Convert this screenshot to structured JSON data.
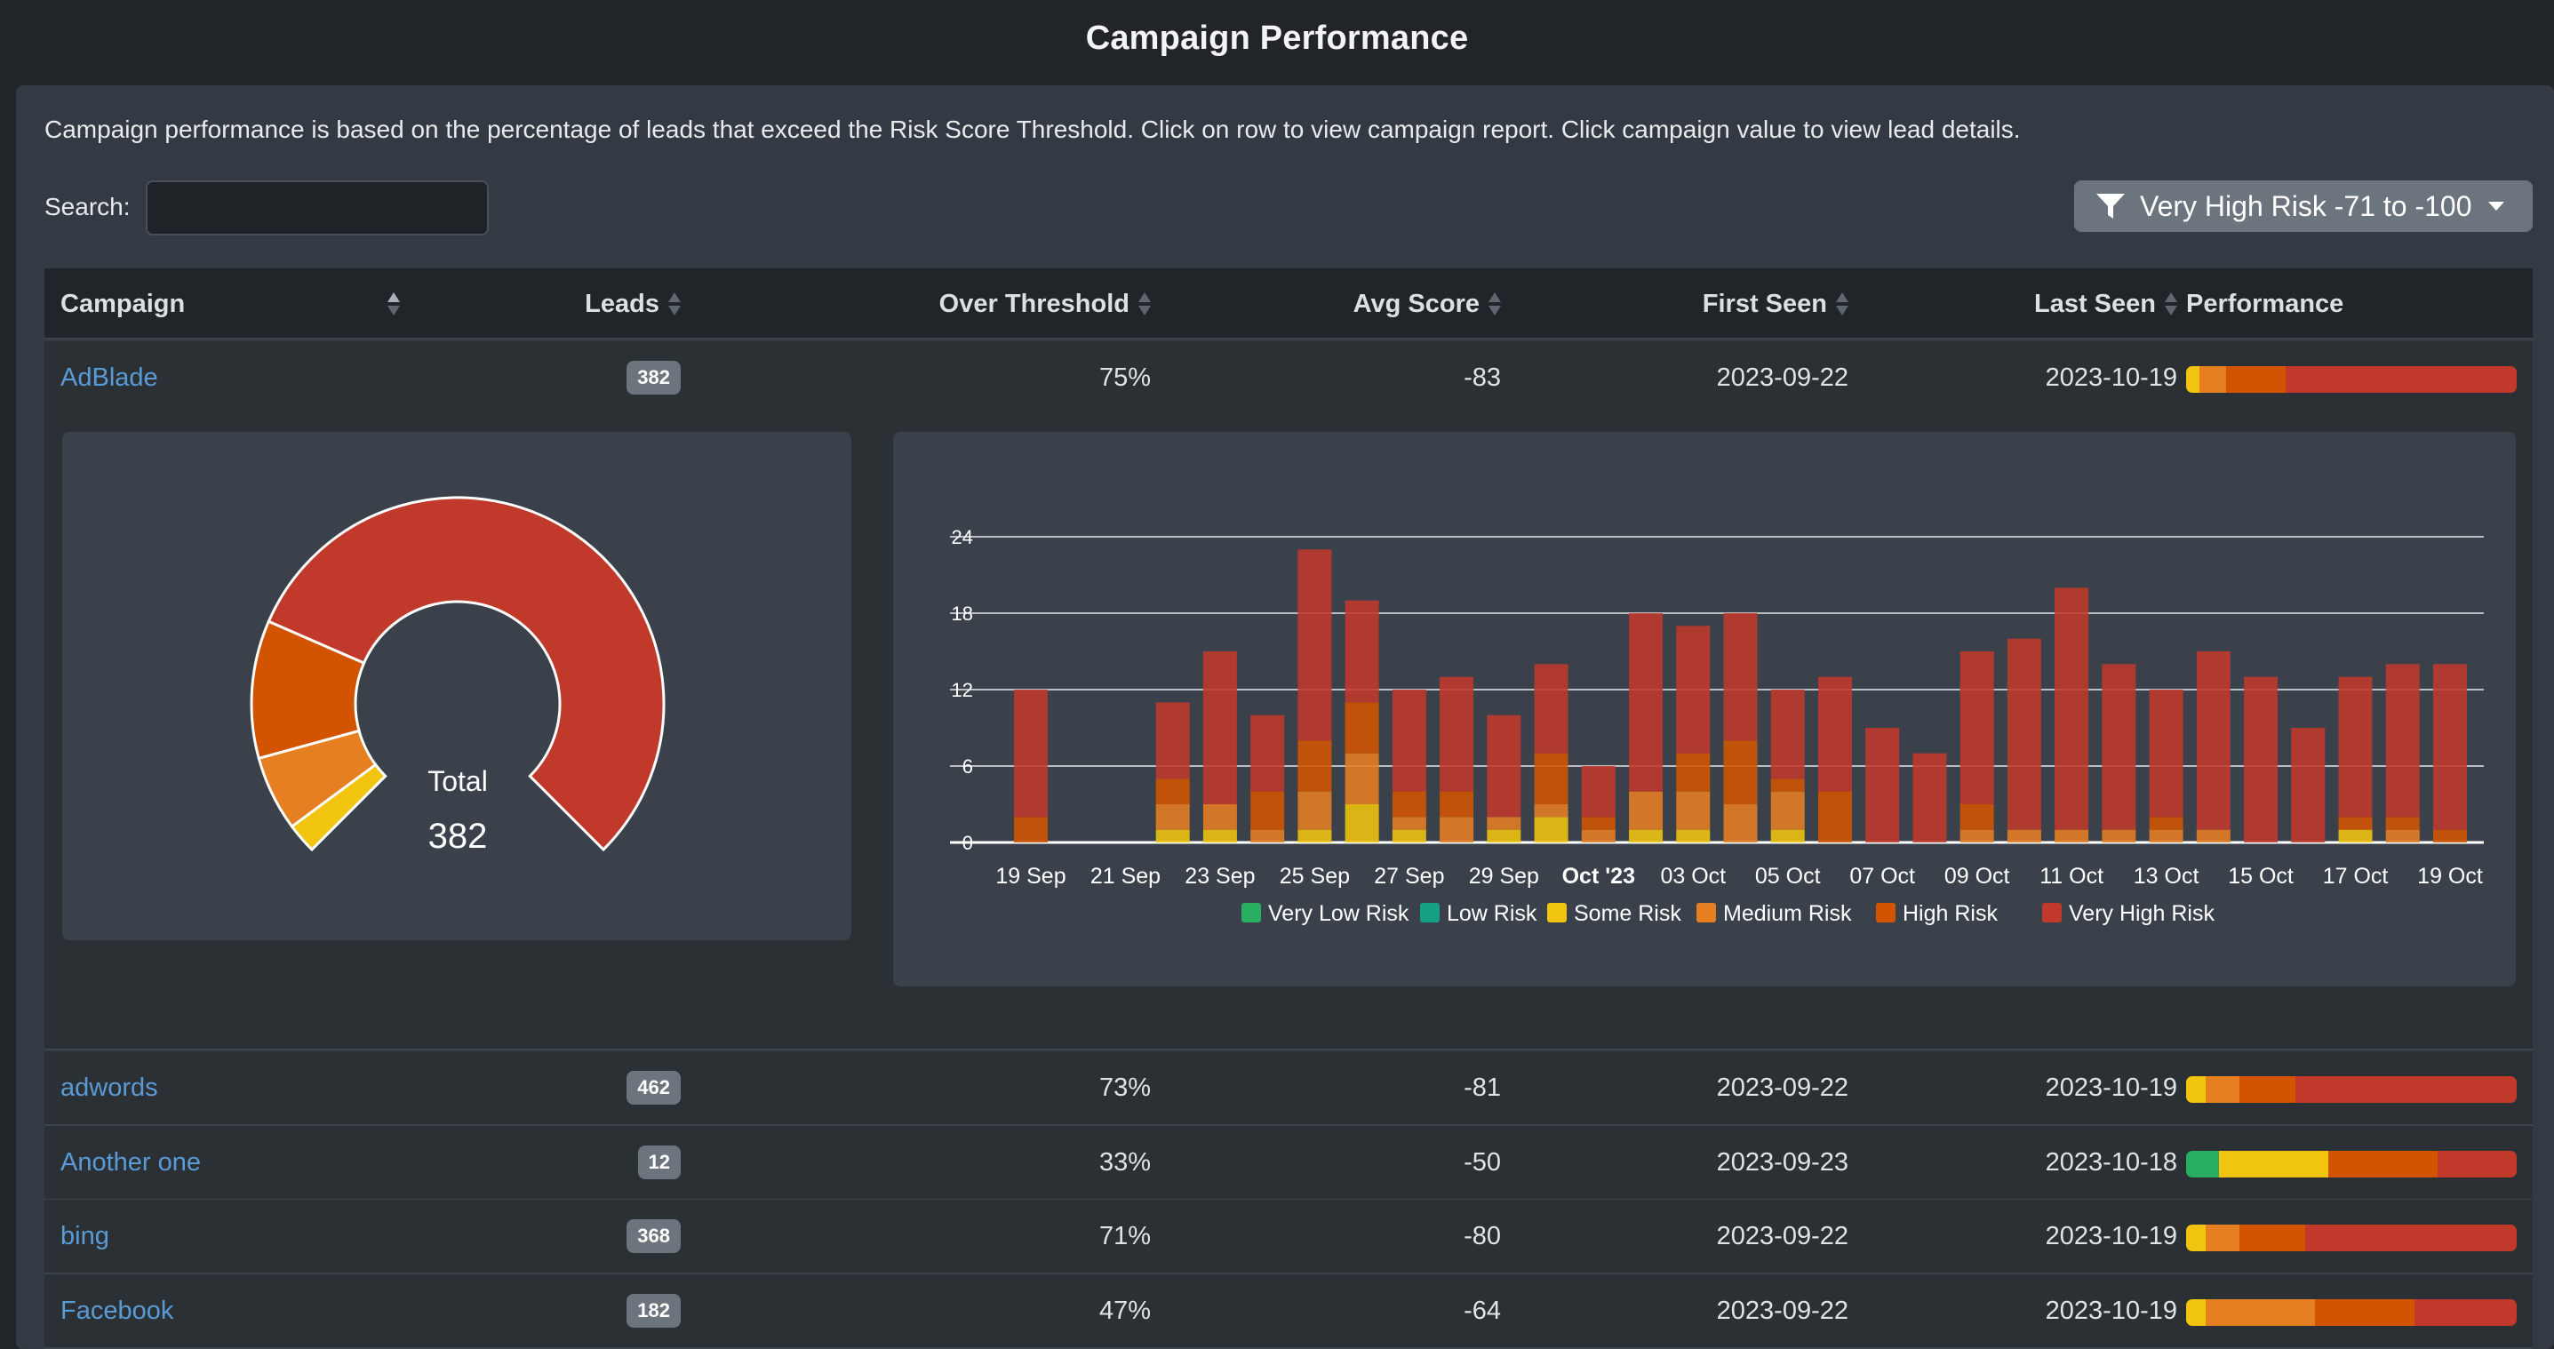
{
  "page_title": "Campaign Performance",
  "description": "Campaign performance is based on the percentage of leads that exceed the Risk Score Threshold. Click on row to view campaign report. Click campaign value to view lead details.",
  "search": {
    "label": "Search:",
    "value": ""
  },
  "filter": {
    "label": "Very High Risk -71 to -100",
    "icon": "filter-icon"
  },
  "table": {
    "headers": [
      "Campaign",
      "Leads",
      "Over Threshold",
      "Avg Score",
      "First Seen",
      "Last Seen",
      "Performance"
    ],
    "rows": [
      {
        "campaign": "AdBlade",
        "leads": "382",
        "over": "75%",
        "avg": "-83",
        "first": "2023-09-22",
        "last": "2023-10-19",
        "perf": [
          0.04,
          0.08,
          0.0,
          0.18,
          0.7
        ]
      },
      {
        "campaign": "adwords",
        "leads": "462",
        "over": "73%",
        "avg": "-81",
        "first": "2023-09-22",
        "last": "2023-10-19",
        "perf": [
          0.06,
          0.1,
          0.0,
          0.17,
          0.67
        ]
      },
      {
        "campaign": "Another one",
        "leads": "12",
        "over": "33%",
        "avg": "-50",
        "first": "2023-09-23",
        "last": "2023-10-18",
        "perf": [
          0.1,
          0.0,
          0.33,
          0.0,
          0.33,
          0.24
        ]
      },
      {
        "campaign": "bing",
        "leads": "368",
        "over": "71%",
        "avg": "-80",
        "first": "2023-09-22",
        "last": "2023-10-19",
        "perf": [
          0.06,
          0.1,
          0.0,
          0.2,
          0.64
        ]
      },
      {
        "campaign": "Facebook",
        "leads": "182",
        "over": "47%",
        "avg": "-64",
        "first": "2023-09-22",
        "last": "2023-10-19",
        "perf": [
          0.06,
          0.0,
          0.0,
          0.33,
          0.3,
          0.31
        ]
      }
    ]
  },
  "perf_colors": [
    "#f1c40f",
    "#e67e22",
    "#d35400",
    "#c0392b"
  ],
  "donut": {
    "center_label": "Total",
    "center_value": "382",
    "slices": [
      {
        "label": "Some Risk",
        "value": 12,
        "color": "#f1c40f"
      },
      {
        "label": "Medium Risk",
        "value": 30,
        "color": "#e67e22"
      },
      {
        "label": "High Risk",
        "value": 55,
        "color": "#d35400"
      },
      {
        "label": "Very High Risk",
        "value": 285,
        "color": "#c0392b"
      }
    ]
  },
  "chart_data": {
    "type": "bar",
    "stacked": true,
    "y_ticks": [
      "0",
      "6",
      "12",
      "18",
      "24"
    ],
    "ylim": [
      0,
      24
    ],
    "x_tick_labels": [
      "19 Sep",
      "21 Sep",
      "23 Sep",
      "25 Sep",
      "27 Sep",
      "29 Sep",
      "Oct '23",
      "03 Oct",
      "05 Oct",
      "07 Oct",
      "09 Oct",
      "11 Oct",
      "13 Oct",
      "15 Oct",
      "17 Oct",
      "19 Oct"
    ],
    "categories": [
      "19 Sep",
      "20 Sep",
      "21 Sep",
      "22 Sep",
      "23 Sep",
      "24 Sep",
      "25 Sep",
      "26 Sep",
      "27 Sep",
      "28 Sep",
      "29 Sep",
      "30 Sep",
      "01 Oct",
      "02 Oct",
      "03 Oct",
      "04 Oct",
      "05 Oct",
      "06 Oct",
      "07 Oct",
      "08 Oct",
      "09 Oct",
      "10 Oct",
      "11 Oct",
      "12 Oct",
      "13 Oct",
      "14 Oct",
      "15 Oct",
      "16 Oct",
      "17 Oct",
      "18 Oct",
      "19 Oct"
    ],
    "legend": [
      {
        "name": "Very Low Risk",
        "color": "#27ae60"
      },
      {
        "name": "Low Risk",
        "color": "#16a085"
      },
      {
        "name": "Some Risk",
        "color": "#f1c40f"
      },
      {
        "name": "Medium Risk",
        "color": "#e67e22"
      },
      {
        "name": "High Risk",
        "color": "#d35400"
      },
      {
        "name": "Very High Risk",
        "color": "#c0392b"
      }
    ],
    "series": [
      {
        "name": "Very Low Risk",
        "values": [
          0,
          0,
          0,
          0,
          0,
          0,
          0,
          0,
          0,
          0,
          0,
          0,
          0,
          0,
          0,
          0,
          0,
          0,
          0,
          0,
          0,
          0,
          0,
          0,
          0,
          0,
          0,
          0,
          0,
          0,
          0
        ]
      },
      {
        "name": "Low Risk",
        "values": [
          0,
          0,
          0,
          0,
          0,
          0,
          0,
          0,
          0,
          0,
          0,
          0,
          0,
          0,
          0,
          0,
          0,
          0,
          0,
          0,
          0,
          0,
          0,
          0,
          0,
          0,
          0,
          0,
          0,
          0,
          0
        ]
      },
      {
        "name": "Some Risk",
        "values": [
          0,
          0,
          0,
          1,
          1,
          0,
          1,
          3,
          1,
          0,
          1,
          2,
          0,
          1,
          1,
          0,
          1,
          0,
          0,
          0,
          0,
          0,
          0,
          0,
          0,
          0,
          0,
          0,
          1,
          0,
          0
        ]
      },
      {
        "name": "Medium Risk",
        "values": [
          0,
          0,
          0,
          2,
          2,
          1,
          3,
          4,
          1,
          2,
          1,
          1,
          1,
          3,
          3,
          3,
          3,
          0,
          0,
          0,
          1,
          1,
          1,
          1,
          1,
          1,
          0,
          0,
          0,
          1,
          0
        ]
      },
      {
        "name": "High Risk",
        "values": [
          2,
          0,
          0,
          2,
          0,
          3,
          4,
          4,
          2,
          2,
          0,
          4,
          1,
          0,
          3,
          5,
          1,
          4,
          0,
          0,
          2,
          0,
          0,
          0,
          1,
          0,
          0,
          0,
          1,
          1,
          1
        ]
      },
      {
        "name": "Very High Risk",
        "values": [
          10,
          0,
          0,
          6,
          12,
          6,
          15,
          8,
          8,
          9,
          8,
          7,
          4,
          14,
          10,
          10,
          7,
          9,
          9,
          7,
          12,
          15,
          19,
          13,
          10,
          14,
          13,
          9,
          11,
          12,
          13
        ]
      }
    ]
  }
}
